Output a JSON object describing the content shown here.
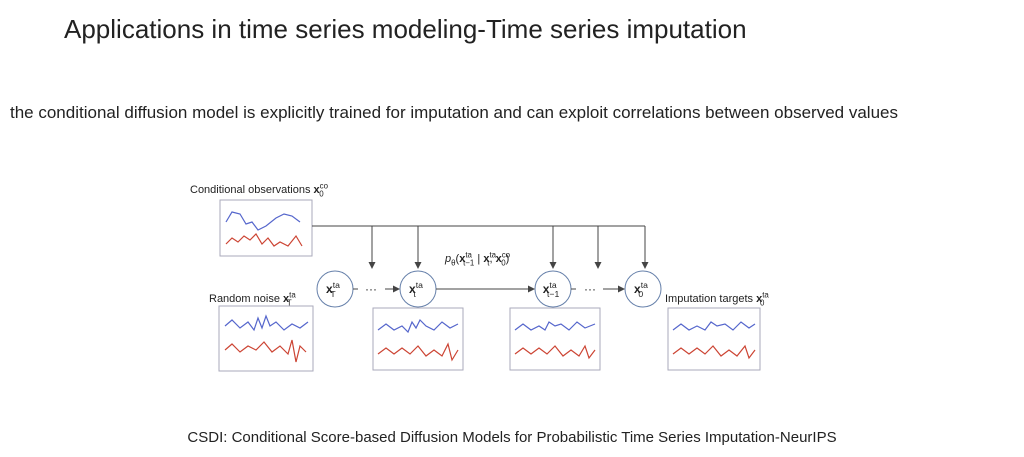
{
  "header": {
    "title": "Applications in time series modeling-Time series imputation",
    "subtitle": "the conditional diffusion model is explicitly trained for imputation and can exploit correlations between observed values"
  },
  "diagram": {
    "conditional_label": [
      {
        "t": "Conditional observations ",
        "r": "n"
      },
      {
        "t": "x",
        "r": "b"
      },
      {
        "t": "co",
        "r": "sup"
      },
      {
        "t": "0",
        "r": "sub"
      }
    ],
    "noise_label": [
      {
        "t": "Random noise ",
        "r": "n"
      },
      {
        "t": "x",
        "r": "b"
      },
      {
        "t": "ta",
        "r": "sup"
      },
      {
        "t": "T",
        "r": "sub"
      }
    ],
    "target_label": [
      {
        "t": "Imputation targets ",
        "r": "n"
      },
      {
        "t": "x",
        "r": "b"
      },
      {
        "t": "ta",
        "r": "sup"
      },
      {
        "t": "0",
        "r": "sub"
      }
    ],
    "formula": [
      {
        "t": "p",
        "r": "i"
      },
      {
        "t": "θ",
        "r": "sub"
      },
      {
        "t": "(",
        "r": "n"
      },
      {
        "t": "x",
        "r": "b"
      },
      {
        "t": "ta",
        "r": "sup"
      },
      {
        "t": "t−1",
        "r": "sub"
      },
      {
        "t": " | ",
        "r": "n"
      },
      {
        "t": "x",
        "r": "b"
      },
      {
        "t": "ta",
        "r": "sup"
      },
      {
        "t": "t",
        "r": "sub"
      },
      {
        "t": ", ",
        "r": "n"
      },
      {
        "t": "x",
        "r": "b"
      },
      {
        "t": "co",
        "r": "sup"
      },
      {
        "t": "0",
        "r": "sub"
      },
      {
        "t": ")",
        "r": "n"
      }
    ],
    "nodes": [
      [
        {
          "t": "x",
          "r": "b"
        },
        {
          "t": "ta",
          "r": "sup"
        },
        {
          "t": "T",
          "r": "sub"
        }
      ],
      [
        {
          "t": "x",
          "r": "b"
        },
        {
          "t": "ta",
          "r": "sup"
        },
        {
          "t": "t",
          "r": "sub"
        }
      ],
      [
        {
          "t": "x",
          "r": "b"
        },
        {
          "t": "ta",
          "r": "sup"
        },
        {
          "t": "t−1",
          "r": "sub"
        }
      ],
      [
        {
          "t": "x",
          "r": "b"
        },
        {
          "t": "ta",
          "r": "sup"
        },
        {
          "t": "0",
          "r": "sub"
        }
      ]
    ],
    "ellipses": [
      "···",
      "···"
    ]
  },
  "footer": {
    "caption": "CSDI: Conditional Score-based Diffusion Models for Probabilistic Time Series Imputation-NeurIPS"
  }
}
